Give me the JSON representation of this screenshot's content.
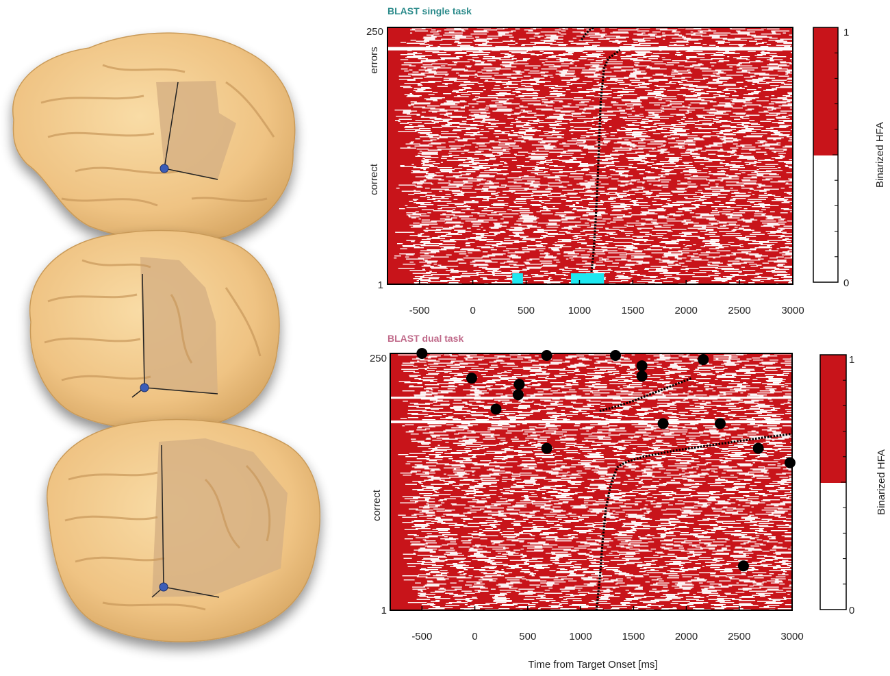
{
  "colors": {
    "hfa_active": "#c8141a",
    "hfa_inactive": "#ffffff",
    "brain_surface": "#f3c98a",
    "brain_roi": "#d9b58a",
    "electrode": "#3a5db8",
    "rt_marker": "#000000",
    "sig_window": "#1ee8f0",
    "single_title": "#2a8a8a",
    "dual_title": "#c06a8a",
    "errors_label": "#c0282a",
    "correct_label": "#4a7a2a"
  },
  "brain_views": [
    {
      "name": "lateral-left-view",
      "electrode_icon": "electrode-dot-icon"
    },
    {
      "name": "frontal-oblique-view",
      "electrode_icon": "electrode-dot-icon"
    },
    {
      "name": "lateral-oblique-view",
      "electrode_icon": "electrode-dot-icon"
    }
  ],
  "chart_data": [
    {
      "type": "heatmap",
      "title": "BLAST single task",
      "xlabel": "",
      "ylabel": "",
      "xlim": [
        -800,
        3000
      ],
      "ylim": [
        1,
        250
      ],
      "xticks": [
        -500,
        0,
        500,
        1000,
        1500,
        2000,
        2500,
        3000
      ],
      "xtick_labels": [
        "-500",
        "0",
        "500",
        "1000",
        "1500",
        "2000",
        "2500",
        "3000"
      ],
      "yticks": [
        1,
        250
      ],
      "ytick_labels": [
        "1",
        "250"
      ],
      "row_groups": [
        {
          "label": "errors",
          "rows": [
            232,
            250
          ]
        },
        {
          "label": "correct",
          "rows": [
            1,
            230
          ]
        }
      ],
      "rt_curve_correct": [
        [
          1,
          1100
        ],
        [
          30,
          1130
        ],
        [
          60,
          1150
        ],
        [
          100,
          1170
        ],
        [
          140,
          1185
        ],
        [
          180,
          1200
        ],
        [
          210,
          1230
        ],
        [
          220,
          1270
        ],
        [
          228,
          1380
        ]
      ],
      "rt_curve_errors": [
        [
          238,
          1020
        ],
        [
          244,
          1060
        ],
        [
          248,
          1100
        ],
        [
          250,
          1140
        ]
      ],
      "significance_windows": [
        [
          370,
          470
        ],
        [
          920,
          1230
        ]
      ],
      "colorbar": {
        "label": "Binarized HFA",
        "min_label": "0",
        "max_label": "1"
      }
    },
    {
      "type": "heatmap",
      "title": "BLAST dual task",
      "xlabel": "Time from Target Onset [ms]",
      "ylabel": "",
      "xlim": [
        -800,
        3000
      ],
      "ylim": [
        1,
        250
      ],
      "xticks": [
        -500,
        0,
        500,
        1000,
        1500,
        2000,
        2500,
        3000
      ],
      "xtick_labels": [
        "-500",
        "0",
        "500",
        "1000",
        "1500",
        "2000",
        "2500",
        "3000"
      ],
      "yticks": [
        1,
        250
      ],
      "ytick_labels": [
        "1",
        "250"
      ],
      "row_groups": [
        {
          "label": "correct",
          "rows": [
            1,
            250
          ]
        }
      ],
      "rt_curve_lower": [
        [
          1,
          1150
        ],
        [
          30,
          1180
        ],
        [
          70,
          1210
        ],
        [
          100,
          1240
        ],
        [
          120,
          1280
        ],
        [
          130,
          1310
        ],
        [
          140,
          1350
        ],
        [
          145,
          1440
        ],
        [
          150,
          1600
        ],
        [
          156,
          1900
        ],
        [
          162,
          2300
        ],
        [
          168,
          2700
        ],
        [
          172,
          3000
        ]
      ],
      "rt_curve_upper": [
        [
          194,
          1180
        ],
        [
          198,
          1320
        ],
        [
          204,
          1500
        ],
        [
          212,
          1700
        ],
        [
          220,
          1900
        ],
        [
          226,
          2050
        ]
      ],
      "stray_rt_points": [
        [
          250,
          -500
        ],
        [
          226,
          -30
        ],
        [
          248,
          680
        ],
        [
          248,
          1330
        ],
        [
          238,
          1580
        ],
        [
          228,
          1580
        ],
        [
          244,
          2160
        ],
        [
          220,
          420
        ],
        [
          210,
          410
        ],
        [
          196,
          200
        ],
        [
          182,
          1780
        ],
        [
          182,
          2320
        ],
        [
          158,
          680
        ],
        [
          158,
          2680
        ],
        [
          144,
          2980
        ],
        [
          44,
          2540
        ]
      ],
      "colorbar": {
        "label": "Binarized HFA",
        "min_label": "0",
        "max_label": "1"
      }
    }
  ]
}
